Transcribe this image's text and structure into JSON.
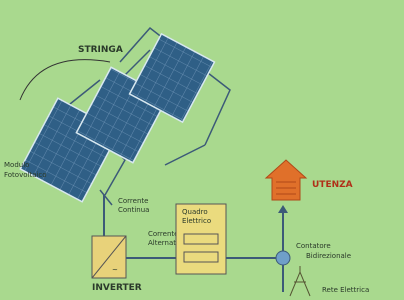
{
  "labels": {
    "stringa": "STRINGA",
    "modulo": [
      "Modulo",
      "Fotovoltaico"
    ],
    "corrente_continua": [
      "Corrente",
      "Continua"
    ],
    "quadro": [
      "Quadro",
      "Elettrico"
    ],
    "corrente_alternata": [
      "Corrente",
      "Alternata"
    ],
    "utenza": "UTENZA",
    "inverter": "INVERTER",
    "contatore": [
      "Contatore",
      "Bidirezionale"
    ],
    "rete": "Rete Elettrica"
  }
}
